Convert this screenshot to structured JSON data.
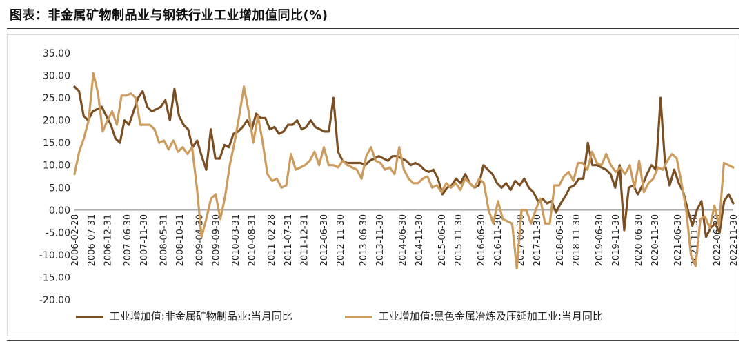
{
  "header": {
    "title": "图表：非金属矿物制品业与钢铁行业工业增加值同比(%)"
  },
  "colors": {
    "series1": "#7a4f24",
    "series2": "#cc9c5e",
    "axis": "#808080"
  },
  "chart_data": {
    "type": "line",
    "title": "图表：非金属矿物制品业与钢铁行业工业增加值同比(%)",
    "xlabel": "",
    "ylabel": "",
    "ylim": [
      -20,
      35
    ],
    "yticks": [
      "35.00",
      "30.00",
      "25.00",
      "20.00",
      "15.00",
      "10.00",
      "5.00",
      "0.00",
      "-5.00",
      "-10.00",
      "-15.00",
      "-20.00"
    ],
    "x_start": "2006-02-28",
    "x_end": "2022-11-30",
    "xticks": [
      "2006-02-28",
      "2006-07-31",
      "2006-12-31",
      "2007-06-30",
      "2007-11-30",
      "2008-05-31",
      "2008-10-31",
      "2009-04-30",
      "2009-09-30",
      "2010-03-31",
      "2010-08-31",
      "2011-02-28",
      "2011-07-31",
      "2011-12-31",
      "2012-06-30",
      "2012-11-30",
      "2013-06-30",
      "2013-11-30",
      "2014-06-30",
      "2014-11-30",
      "2015-06-30",
      "2015-11-30",
      "2016-06-30",
      "2016-11-30",
      "2017-06-30",
      "2017-11-30",
      "2018-06-30",
      "2018-11-30",
      "2019-06-30",
      "2019-11-30",
      "2020-06-30",
      "2020-11-30",
      "2021-06-30",
      "2021-11-30",
      "2022-06-30",
      "2022-11-30"
    ],
    "legend_position": "bottom",
    "series": [
      {
        "name": "工业增加值:非金属矿物制品业:当月同比",
        "values": [
          [
            0,
            27.5
          ],
          [
            1,
            26.5
          ],
          [
            2,
            21
          ],
          [
            3,
            20
          ],
          [
            4,
            22
          ],
          [
            5,
            22.5
          ],
          [
            6,
            23
          ],
          [
            7,
            21
          ],
          [
            8,
            19
          ],
          [
            9,
            16
          ],
          [
            10,
            15
          ],
          [
            11,
            20
          ],
          [
            12,
            19
          ],
          [
            13,
            22
          ],
          [
            14,
            25
          ],
          [
            15,
            26.5
          ],
          [
            16,
            23
          ],
          [
            17,
            22
          ],
          [
            18,
            22.5
          ],
          [
            19,
            23
          ],
          [
            20,
            24.5
          ],
          [
            21,
            20
          ],
          [
            22,
            27
          ],
          [
            23,
            21
          ],
          [
            24,
            19
          ],
          [
            25,
            18
          ],
          [
            26,
            14
          ],
          [
            27,
            15.5
          ],
          [
            28,
            12
          ],
          [
            29,
            9
          ],
          [
            30,
            18
          ],
          [
            31,
            11.5
          ],
          [
            32,
            11.5
          ],
          [
            33,
            14.5
          ],
          [
            34,
            14
          ],
          [
            35,
            17
          ],
          [
            36,
            17.5
          ],
          [
            37,
            18.5
          ],
          [
            38,
            20
          ],
          [
            39,
            18
          ],
          [
            40,
            21.5
          ],
          [
            41,
            20.5
          ],
          [
            42,
            20.5
          ],
          [
            43,
            18
          ],
          [
            44,
            18.5
          ],
          [
            45,
            17
          ],
          [
            46,
            17.5
          ],
          [
            47,
            19
          ],
          [
            48,
            19
          ],
          [
            49,
            20
          ],
          [
            50,
            18
          ],
          [
            51,
            18.5
          ],
          [
            52,
            20
          ],
          [
            53,
            18.5
          ],
          [
            54,
            18
          ],
          [
            55,
            17.5
          ],
          [
            56,
            17.5
          ],
          [
            57,
            25
          ],
          [
            58,
            13
          ],
          [
            59,
            11
          ],
          [
            60,
            10.5
          ],
          [
            61,
            10.5
          ],
          [
            62,
            10.5
          ],
          [
            63,
            10.5
          ],
          [
            64,
            10
          ],
          [
            65,
            11
          ],
          [
            66,
            11.5
          ],
          [
            67,
            12
          ],
          [
            68,
            11.5
          ],
          [
            69,
            11
          ],
          [
            70,
            12
          ],
          [
            71,
            12
          ],
          [
            72,
            11.5
          ],
          [
            73,
            11
          ],
          [
            74,
            10
          ],
          [
            75,
            10.5
          ],
          [
            76,
            10
          ],
          [
            77,
            9
          ],
          [
            78,
            8.5
          ],
          [
            79,
            9
          ],
          [
            80,
            7
          ],
          [
            81,
            3.5
          ],
          [
            82,
            5
          ],
          [
            83,
            5.5
          ],
          [
            84,
            7
          ],
          [
            85,
            6
          ],
          [
            86,
            8
          ],
          [
            87,
            6
          ],
          [
            88,
            5
          ],
          [
            89,
            5.5
          ],
          [
            90,
            10
          ],
          [
            91,
            9
          ],
          [
            92,
            8
          ],
          [
            93,
            6
          ],
          [
            94,
            5
          ],
          [
            95,
            6
          ],
          [
            96,
            4.5
          ],
          [
            97,
            6.5
          ],
          [
            98,
            5.5
          ],
          [
            99,
            7
          ],
          [
            100,
            5
          ],
          [
            101,
            4
          ],
          [
            102,
            2
          ],
          [
            103,
            2.5
          ],
          [
            104,
            1.5
          ],
          [
            105,
            2
          ],
          [
            106,
            -0.5
          ],
          [
            107,
            1.5
          ],
          [
            108,
            3
          ],
          [
            109,
            5
          ],
          [
            110,
            5.5
          ],
          [
            111,
            7
          ],
          [
            112,
            7
          ],
          [
            113,
            15
          ],
          [
            114,
            10
          ],
          [
            115,
            10
          ],
          [
            116,
            9.5
          ],
          [
            117,
            9
          ],
          [
            118,
            8
          ],
          [
            119,
            5
          ],
          [
            120,
            10
          ],
          [
            121,
            -4.5
          ],
          [
            122,
            5
          ],
          [
            123,
            5.5
          ],
          [
            124,
            3.5
          ],
          [
            125,
            5.5
          ],
          [
            126,
            8
          ],
          [
            127,
            10
          ],
          [
            128,
            9
          ],
          [
            129,
            25
          ],
          [
            130,
            10
          ],
          [
            131,
            5.5
          ],
          [
            132,
            9
          ],
          [
            133,
            6
          ],
          [
            134,
            4
          ],
          [
            135,
            0
          ],
          [
            136,
            -3.5
          ],
          [
            137,
            0
          ],
          [
            138,
            2
          ],
          [
            139,
            -6
          ],
          [
            140,
            -4
          ],
          [
            141,
            -3
          ],
          [
            142,
            -5
          ],
          [
            143,
            2
          ],
          [
            144,
            3.5
          ],
          [
            145,
            1.5
          ]
        ]
      },
      {
        "name": "工业增加值:黑色金属冶炼及压延加工业:当月同比",
        "values": [
          [
            0,
            8
          ],
          [
            1,
            13
          ],
          [
            2,
            16
          ],
          [
            3,
            20
          ],
          [
            4,
            30.5
          ],
          [
            5,
            26
          ],
          [
            6,
            17.5
          ],
          [
            7,
            20
          ],
          [
            8,
            22
          ],
          [
            9,
            19
          ],
          [
            10,
            25.5
          ],
          [
            11,
            25.5
          ],
          [
            12,
            26
          ],
          [
            13,
            25
          ],
          [
            14,
            19
          ],
          [
            15,
            19
          ],
          [
            16,
            19
          ],
          [
            17,
            18
          ],
          [
            18,
            15
          ],
          [
            19,
            15.5
          ],
          [
            20,
            13.5
          ],
          [
            21,
            15.5
          ],
          [
            22,
            13
          ],
          [
            23,
            14
          ],
          [
            24,
            12.5
          ],
          [
            25,
            14
          ],
          [
            26,
            5
          ],
          [
            27,
            -6
          ],
          [
            28,
            -2
          ],
          [
            29,
            2.5
          ],
          [
            30,
            3.5
          ],
          [
            31,
            -2
          ],
          [
            32,
            3
          ],
          [
            33,
            10
          ],
          [
            34,
            15
          ],
          [
            35,
            21
          ],
          [
            36,
            27.5
          ],
          [
            37,
            22
          ],
          [
            38,
            15
          ],
          [
            39,
            21
          ],
          [
            40,
            15
          ],
          [
            41,
            8
          ],
          [
            42,
            6.5
          ],
          [
            43,
            7
          ],
          [
            44,
            5
          ],
          [
            45,
            5.5
          ],
          [
            46,
            12.5
          ],
          [
            47,
            9
          ],
          [
            48,
            9.5
          ],
          [
            49,
            10
          ],
          [
            50,
            11
          ],
          [
            51,
            13
          ],
          [
            52,
            10
          ],
          [
            53,
            14
          ],
          [
            54,
            10
          ],
          [
            55,
            10
          ],
          [
            56,
            9.5
          ],
          [
            57,
            11
          ],
          [
            58,
            10
          ],
          [
            59,
            9.5
          ],
          [
            60,
            9
          ],
          [
            61,
            7
          ],
          [
            62,
            12
          ],
          [
            63,
            14
          ],
          [
            64,
            11
          ],
          [
            65,
            10.5
          ],
          [
            66,
            9
          ],
          [
            67,
            9.5
          ],
          [
            68,
            8
          ],
          [
            69,
            14
          ],
          [
            70,
            9
          ],
          [
            71,
            7
          ],
          [
            72,
            6
          ],
          [
            73,
            6
          ],
          [
            74,
            7
          ],
          [
            75,
            7.5
          ],
          [
            76,
            5
          ],
          [
            77,
            5.5
          ],
          [
            78,
            4
          ],
          [
            79,
            6
          ],
          [
            80,
            5
          ],
          [
            81,
            6
          ],
          [
            82,
            4.5
          ],
          [
            83,
            7
          ],
          [
            84,
            6
          ],
          [
            85,
            5
          ],
          [
            86,
            7
          ],
          [
            87,
            6
          ],
          [
            88,
            0
          ],
          [
            89,
            -3
          ],
          [
            90,
            2
          ],
          [
            91,
            -2
          ],
          [
            92,
            -2.5
          ],
          [
            93,
            -3
          ],
          [
            94,
            -13
          ],
          [
            95,
            0
          ],
          [
            96,
            0
          ],
          [
            97,
            -3
          ],
          [
            98,
            0
          ],
          [
            99,
            2.5
          ],
          [
            100,
            -3
          ],
          [
            101,
            -3
          ],
          [
            102,
            5.5
          ],
          [
            103,
            5.5
          ],
          [
            104,
            7.5
          ],
          [
            105,
            8.5
          ],
          [
            106,
            6.5
          ],
          [
            107,
            10.5
          ],
          [
            108,
            10.5
          ],
          [
            109,
            9
          ],
          [
            110,
            13
          ],
          [
            111,
            10.5
          ],
          [
            112,
            10
          ],
          [
            113,
            12.5
          ],
          [
            114,
            10
          ],
          [
            115,
            8.5
          ],
          [
            116,
            9.5
          ],
          [
            117,
            8
          ],
          [
            118,
            10
          ],
          [
            119,
            5
          ],
          [
            120,
            11
          ],
          [
            121,
            4
          ],
          [
            122,
            6
          ],
          [
            123,
            7
          ],
          [
            124,
            9.5
          ],
          [
            125,
            9
          ],
          [
            126,
            11
          ],
          [
            127,
            12.5
          ],
          [
            128,
            11.5
          ],
          [
            129,
            6
          ],
          [
            130,
            0
          ],
          [
            131,
            -10
          ],
          [
            132,
            -12.5
          ],
          [
            133,
            -2
          ],
          [
            134,
            -1.5
          ],
          [
            135,
            -4
          ],
          [
            136,
            1
          ],
          [
            137,
            -3.5
          ],
          [
            138,
            10.5
          ],
          [
            139,
            10
          ],
          [
            140,
            9.5
          ]
        ]
      }
    ]
  }
}
